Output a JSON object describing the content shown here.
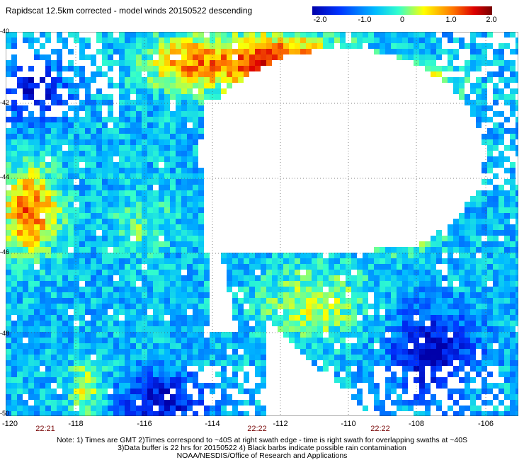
{
  "title": "Rapidscat 12.5km corrected - model winds 20150522 descending",
  "colorbar": {
    "labels": [
      "-2.0",
      "-1.0",
      "0",
      "1.0",
      "2.0"
    ],
    "colors": [
      "#0000aa",
      "#0044ff",
      "#00ddee",
      "#ffee00",
      "#ff5500",
      "#880000"
    ]
  },
  "axes": {
    "x_ticks": [
      "-120",
      "-118",
      "-116",
      "-114",
      "-112",
      "-110",
      "-108",
      "-106"
    ],
    "y_ticks": [
      "-40",
      "-42",
      "-44",
      "-46",
      "-48",
      "-50"
    ]
  },
  "times": [
    "22:21",
    "22:22",
    "22:22"
  ],
  "notes": {
    "line1": "Note: 1) Times are GMT 2)Times correspond to ~40S at right swath edge - time is right swath for overlapping swaths at ~40S",
    "line2": "3)Data buffer is 22 hrs for 20150522 4) Black barbs indicate possible rain contamination",
    "line3": "NOAA/NESDIS/Office of Research and Applications"
  }
}
